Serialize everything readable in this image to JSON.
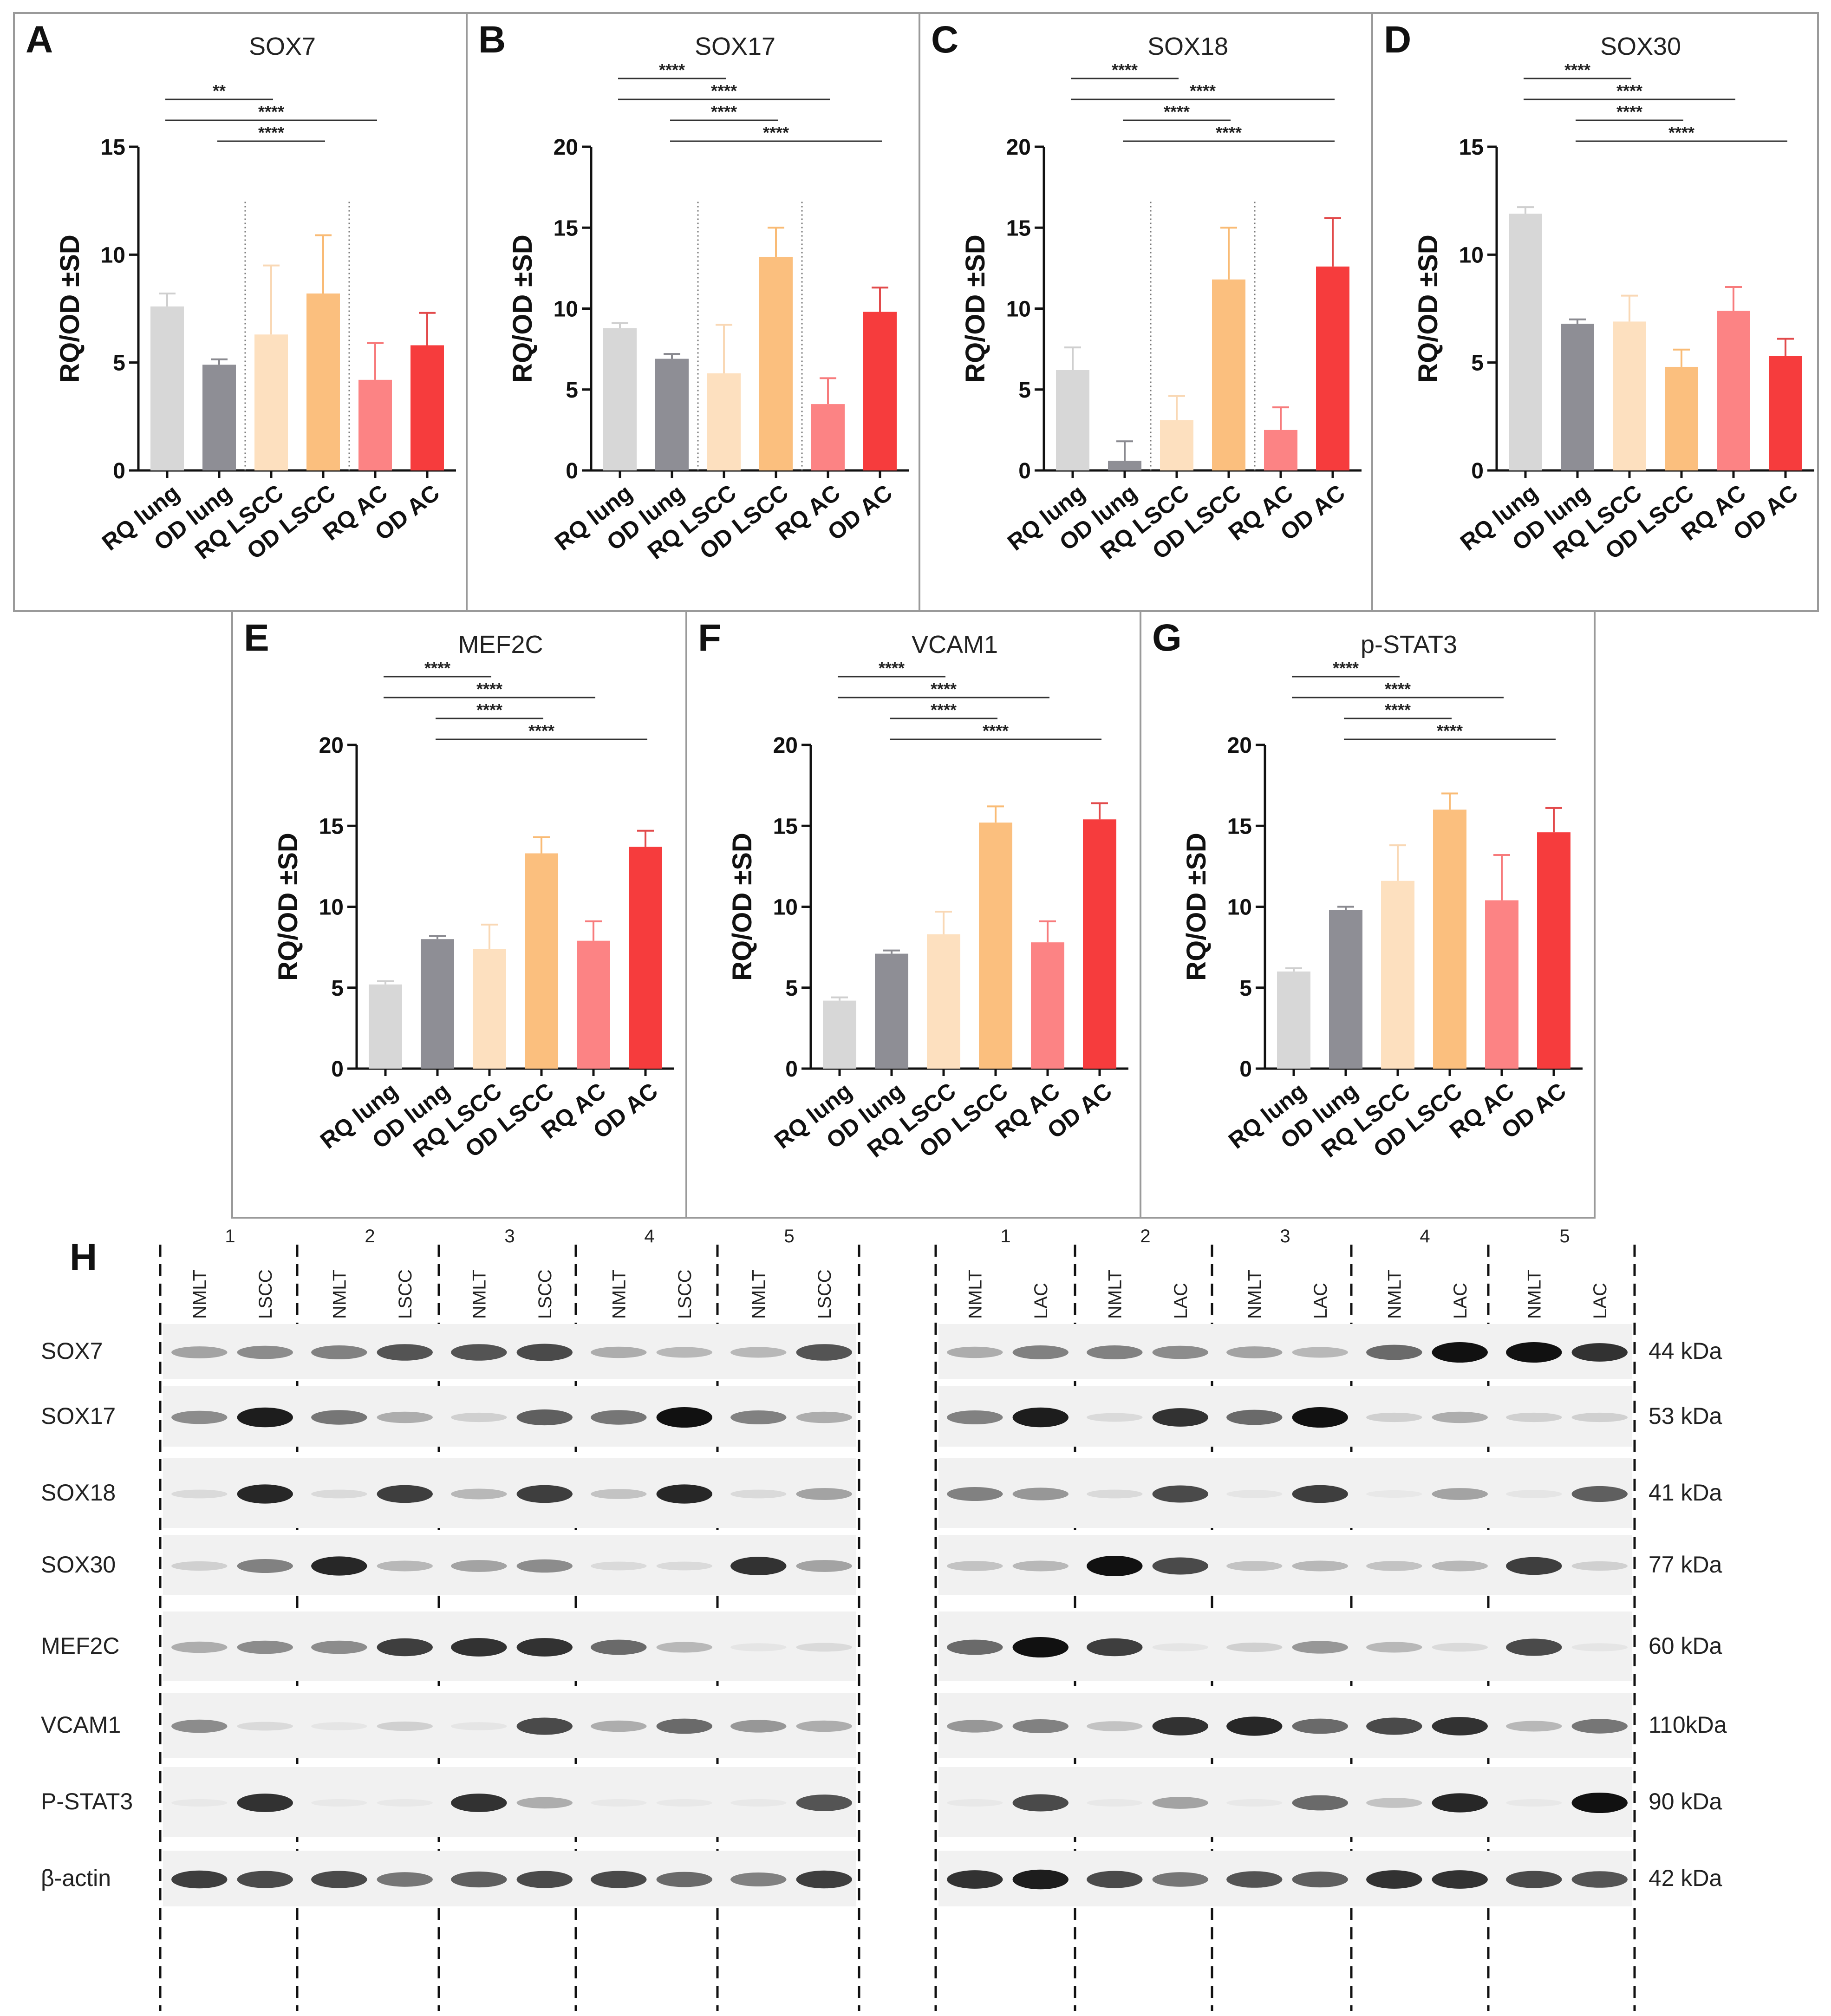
{
  "figure": {
    "chart_data": [
      {
        "type": "bar",
        "letter": "A",
        "title": "SOX7",
        "ylabel": "RQ/OD ±SD",
        "ylim": [
          0,
          15
        ],
        "yticks": [
          0,
          5,
          10,
          15
        ],
        "categories": [
          "RQ lung",
          "OD lung",
          "RQ LSCC",
          "OD LSCC",
          "RQ AC",
          "OD AC"
        ],
        "values": [
          7.6,
          4.9,
          6.3,
          8.2,
          4.2,
          5.8
        ],
        "errors": [
          0.6,
          0.25,
          3.2,
          2.7,
          1.7,
          1.5
        ],
        "dividers_after": [
          2,
          4
        ],
        "significance": [
          {
            "from": 1,
            "to": 3,
            "label": "**"
          },
          {
            "from": 1,
            "to": 5,
            "label": "****"
          },
          {
            "from": 2,
            "to": 4,
            "label": "****"
          }
        ]
      },
      {
        "type": "bar",
        "letter": "B",
        "title": "SOX17",
        "ylabel": "RQ/OD ±SD",
        "ylim": [
          0,
          20
        ],
        "yticks": [
          0,
          5,
          10,
          15,
          20
        ],
        "categories": [
          "RQ lung",
          "OD lung",
          "RQ LSCC",
          "OD LSCC",
          "RQ AC",
          "OD AC"
        ],
        "values": [
          8.8,
          6.9,
          6.0,
          13.2,
          4.1,
          9.8
        ],
        "errors": [
          0.3,
          0.3,
          3.0,
          1.8,
          1.6,
          1.5
        ],
        "dividers_after": [
          2,
          4
        ],
        "significance": [
          {
            "from": 1,
            "to": 3,
            "label": "****"
          },
          {
            "from": 1,
            "to": 5,
            "label": "****"
          },
          {
            "from": 2,
            "to": 4,
            "label": "****"
          },
          {
            "from": 2,
            "to": 6,
            "label": "****"
          }
        ]
      },
      {
        "type": "bar",
        "letter": "C",
        "title": "SOX18",
        "ylabel": "RQ/OD ±SD",
        "ylim": [
          0,
          20
        ],
        "yticks": [
          0,
          5,
          10,
          15,
          20
        ],
        "categories": [
          "RQ lung",
          "OD lung",
          "RQ LSCC",
          "OD LSCC",
          "RQ AC",
          "OD AC"
        ],
        "values": [
          6.2,
          0.6,
          3.1,
          11.8,
          2.5,
          12.6
        ],
        "errors": [
          1.4,
          1.2,
          1.5,
          3.2,
          1.4,
          3.0
        ],
        "dividers_after": [
          2,
          4
        ],
        "significance": [
          {
            "from": 1,
            "to": 3,
            "label": "****"
          },
          {
            "from": 1,
            "to": 6,
            "label": "****"
          },
          {
            "from": 2,
            "to": 4,
            "label": "****"
          },
          {
            "from": 2,
            "to": 6,
            "label": "****"
          }
        ]
      },
      {
        "type": "bar",
        "letter": "D",
        "title": "SOX30",
        "ylabel": "RQ/OD ±SD",
        "ylim": [
          0,
          15
        ],
        "yticks": [
          0,
          5,
          10,
          15
        ],
        "categories": [
          "RQ lung",
          "OD lung",
          "RQ LSCC",
          "OD LSCC",
          "RQ AC",
          "OD AC"
        ],
        "values": [
          11.9,
          6.8,
          6.9,
          4.8,
          7.4,
          5.3
        ],
        "errors": [
          0.3,
          0.2,
          1.2,
          0.8,
          1.1,
          0.8
        ],
        "dividers_after": [],
        "significance": [
          {
            "from": 1,
            "to": 3,
            "label": "****"
          },
          {
            "from": 1,
            "to": 5,
            "label": "****"
          },
          {
            "from": 2,
            "to": 4,
            "label": "****"
          },
          {
            "from": 2,
            "to": 6,
            "label": "****"
          }
        ]
      },
      {
        "type": "bar",
        "letter": "E",
        "title": "MEF2C",
        "ylabel": "RQ/OD ±SD",
        "ylim": [
          0,
          20
        ],
        "yticks": [
          0,
          5,
          10,
          15,
          20
        ],
        "categories": [
          "RQ lung",
          "OD lung",
          "RQ LSCC",
          "OD LSCC",
          "RQ AC",
          "OD AC"
        ],
        "values": [
          5.2,
          8.0,
          7.4,
          13.3,
          7.9,
          13.7
        ],
        "errors": [
          0.2,
          0.2,
          1.5,
          1.0,
          1.2,
          1.0
        ],
        "dividers_after": [],
        "significance": [
          {
            "from": 1,
            "to": 3,
            "label": "****"
          },
          {
            "from": 1,
            "to": 5,
            "label": "****"
          },
          {
            "from": 2,
            "to": 4,
            "label": "****"
          },
          {
            "from": 2,
            "to": 6,
            "label": "****"
          }
        ]
      },
      {
        "type": "bar",
        "letter": "F",
        "title": "VCAM1",
        "ylabel": "RQ/OD ±SD",
        "ylim": [
          0,
          20
        ],
        "yticks": [
          0,
          5,
          10,
          15,
          20
        ],
        "categories": [
          "RQ lung",
          "OD lung",
          "RQ LSCC",
          "OD LSCC",
          "RQ AC",
          "OD AC"
        ],
        "values": [
          4.2,
          7.1,
          8.3,
          15.2,
          7.8,
          15.4
        ],
        "errors": [
          0.2,
          0.2,
          1.4,
          1.0,
          1.3,
          1.0
        ],
        "dividers_after": [],
        "significance": [
          {
            "from": 1,
            "to": 3,
            "label": "****"
          },
          {
            "from": 1,
            "to": 5,
            "label": "****"
          },
          {
            "from": 2,
            "to": 4,
            "label": "****"
          },
          {
            "from": 2,
            "to": 6,
            "label": "****"
          }
        ]
      },
      {
        "type": "bar",
        "letter": "G",
        "title": "p-STAT3",
        "ylabel": "RQ/OD ±SD",
        "ylim": [
          0,
          20
        ],
        "yticks": [
          0,
          5,
          10,
          15,
          20
        ],
        "categories": [
          "RQ lung",
          "OD lung",
          "RQ LSCC",
          "OD LSCC",
          "RQ AC",
          "OD AC"
        ],
        "values": [
          6.0,
          9.8,
          11.6,
          16.0,
          10.4,
          14.6
        ],
        "errors": [
          0.2,
          0.2,
          2.2,
          1.0,
          2.8,
          1.5
        ],
        "dividers_after": [],
        "significance": [
          {
            "from": 1,
            "to": 3,
            "label": "****"
          },
          {
            "from": 1,
            "to": 5,
            "label": "****"
          },
          {
            "from": 2,
            "to": 4,
            "label": "****"
          },
          {
            "from": 2,
            "to": 6,
            "label": "****"
          }
        ]
      }
    ],
    "colors": {
      "RQ lung": "#d7d7d7",
      "OD lung": "#8e8e95",
      "RQ LSCC": "#fde0bf",
      "OD LSCC": "#fbbf7e",
      "RQ AC": "#fc8384",
      "OD AC": "#f63c3d",
      "RQ lung_err": "#cfcfcf",
      "OD lung_err": "#8a8a90",
      "RQ LSCC_err": "#f9d8b5",
      "OD LSCC_err": "#f9bb75",
      "RQ AC_err": "#f77b7c",
      "OD AC_err": "#e24a4b"
    },
    "blot": {
      "letter": "H",
      "proteins": [
        "SOX7",
        "SOX17",
        "SOX18",
        "SOX30",
        "MEF2C",
        "VCAM1",
        "P-STAT3",
        "β-actin"
      ],
      "kda": [
        "44 kDa",
        "53 kDa",
        "41 kDa",
        "77 kDa",
        "60 kDa",
        "110kDa",
        "90 kDa",
        "42 kDa"
      ],
      "left": {
        "patients": [
          "1",
          "2",
          "3",
          "4",
          "5"
        ],
        "lanes": [
          "NMLT",
          "LSCC"
        ],
        "intensity": [
          [
            0.35,
            0.45,
            0.5,
            0.7,
            0.7,
            0.75,
            0.3,
            0.25,
            0.25,
            0.7
          ],
          [
            0.45,
            0.95,
            0.55,
            0.3,
            0.15,
            0.65,
            0.55,
            1.0,
            0.5,
            0.3
          ],
          [
            0.1,
            0.9,
            0.1,
            0.8,
            0.25,
            0.8,
            0.2,
            0.9,
            0.1,
            0.35
          ],
          [
            0.15,
            0.5,
            0.9,
            0.25,
            0.35,
            0.45,
            0.1,
            0.1,
            0.85,
            0.35
          ],
          [
            0.3,
            0.45,
            0.45,
            0.8,
            0.85,
            0.85,
            0.6,
            0.25,
            0.05,
            0.1
          ],
          [
            0.45,
            0.1,
            0.05,
            0.15,
            0.05,
            0.75,
            0.3,
            0.6,
            0.4,
            0.3
          ],
          [
            0.0,
            0.85,
            0.0,
            0.0,
            0.85,
            0.3,
            0.0,
            0.0,
            0.0,
            0.7
          ],
          [
            0.8,
            0.75,
            0.75,
            0.55,
            0.65,
            0.75,
            0.75,
            0.6,
            0.5,
            0.8
          ]
        ]
      },
      "right": {
        "patients": [
          "1",
          "2",
          "3",
          "4",
          "5"
        ],
        "lanes": [
          "NMLT",
          "LAC"
        ],
        "intensity": [
          [
            0.3,
            0.5,
            0.5,
            0.45,
            0.35,
            0.25,
            0.6,
            1.0,
            1.0,
            0.85
          ],
          [
            0.5,
            0.95,
            0.1,
            0.85,
            0.6,
            1.0,
            0.15,
            0.3,
            0.15,
            0.15
          ],
          [
            0.5,
            0.4,
            0.1,
            0.75,
            0.05,
            0.8,
            0.0,
            0.35,
            0.05,
            0.65
          ],
          [
            0.2,
            0.25,
            1.0,
            0.75,
            0.2,
            0.25,
            0.2,
            0.25,
            0.8,
            0.15
          ],
          [
            0.6,
            1.0,
            0.8,
            0.05,
            0.15,
            0.4,
            0.25,
            0.1,
            0.75,
            0.05
          ],
          [
            0.4,
            0.5,
            0.2,
            0.85,
            0.9,
            0.6,
            0.75,
            0.85,
            0.25,
            0.55
          ],
          [
            0.0,
            0.75,
            0.0,
            0.35,
            0.0,
            0.6,
            0.2,
            0.9,
            0.0,
            1.0
          ],
          [
            0.85,
            0.95,
            0.75,
            0.55,
            0.7,
            0.65,
            0.85,
            0.85,
            0.75,
            0.7
          ]
        ]
      }
    }
  }
}
